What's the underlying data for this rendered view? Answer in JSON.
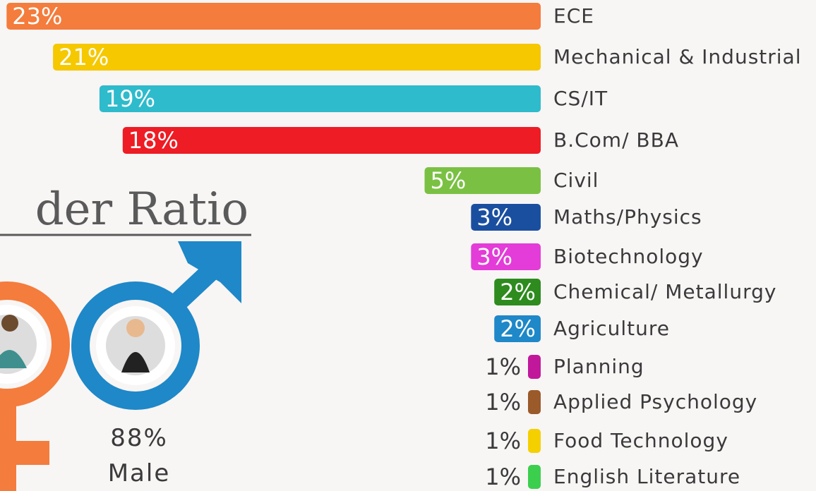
{
  "chart_data": {
    "type": "bar",
    "orientation": "horizontal",
    "categories": [
      "ECE",
      "Mechanical & Industrial",
      "CS/IT",
      "B.Com/ BBA",
      "Civil",
      "Maths/Physics",
      "Biotechnology",
      "Chemical/ Metallurgy",
      "Agriculture",
      "Planning",
      "Applied Psychology",
      "Food Technology",
      "English Literature"
    ],
    "values": [
      23,
      21,
      19,
      18,
      5,
      3,
      3,
      2,
      2,
      1,
      1,
      1,
      1
    ],
    "value_labels": [
      "23%",
      "21%",
      "19%",
      "18%",
      "5%",
      "3%",
      "3%",
      "2%",
      "2%",
      "1%",
      "1%",
      "1%",
      "1%"
    ],
    "colors": [
      "#f47c3c",
      "#f5c800",
      "#2ebbcc",
      "#ee1c24",
      "#7ac143",
      "#1a4fa0",
      "#e33cd8",
      "#2e8b1e",
      "#1e88c8",
      "#c1189b",
      "#9b5a2a",
      "#f5d000",
      "#3ccf4e"
    ]
  },
  "gender": {
    "title": "der Ratio",
    "male_share": "88%",
    "male_label": "Male"
  }
}
